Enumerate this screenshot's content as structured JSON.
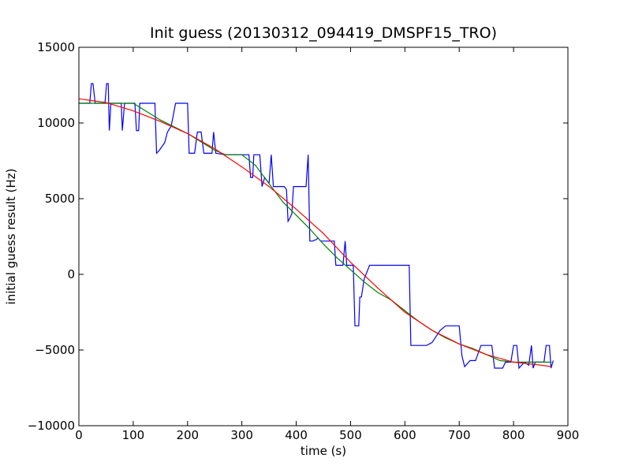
{
  "chart_data": {
    "type": "line",
    "title": "Init guess (20130312_094419_DMSPF15_TRO)",
    "xlabel": "time (s)",
    "ylabel": "initial guess result (Hz)",
    "xlim": [
      0,
      900
    ],
    "ylim": [
      -10000,
      15000
    ],
    "xticks": [
      0,
      100,
      200,
      300,
      400,
      500,
      600,
      700,
      800,
      900
    ],
    "xtick_labels": [
      "0",
      "100",
      "200",
      "300",
      "400",
      "500",
      "600",
      "700",
      "800",
      "900"
    ],
    "yticks": [
      -10000,
      -5000,
      0,
      5000,
      10000,
      15000
    ],
    "ytick_labels": [
      "−10000",
      "−5000",
      "0",
      "5000",
      "10000",
      "15000"
    ],
    "grid": false,
    "legend": "none",
    "series": [
      {
        "color": "#0000ff",
        "points": [
          [
            0,
            11300
          ],
          [
            20,
            11300
          ],
          [
            23,
            12600
          ],
          [
            26,
            12600
          ],
          [
            30,
            11300
          ],
          [
            48,
            11300
          ],
          [
            51,
            12600
          ],
          [
            54,
            12600
          ],
          [
            56,
            9500
          ],
          [
            59,
            11300
          ],
          [
            78,
            11300
          ],
          [
            80,
            9500
          ],
          [
            84,
            11300
          ],
          [
            100,
            11300
          ],
          [
            103,
            11300
          ],
          [
            106,
            9500
          ],
          [
            110,
            9500
          ],
          [
            112,
            11300
          ],
          [
            140,
            11300
          ],
          [
            143,
            8000
          ],
          [
            148,
            8200
          ],
          [
            158,
            8700
          ],
          [
            163,
            9400
          ],
          [
            170,
            9800
          ],
          [
            178,
            11300
          ],
          [
            200,
            11300
          ],
          [
            203,
            8000
          ],
          [
            213,
            8000
          ],
          [
            218,
            9400
          ],
          [
            225,
            9400
          ],
          [
            230,
            8000
          ],
          [
            245,
            8000
          ],
          [
            248,
            9400
          ],
          [
            252,
            8000
          ],
          [
            270,
            7900
          ],
          [
            300,
            7900
          ],
          [
            313,
            7900
          ],
          [
            316,
            6400
          ],
          [
            320,
            6400
          ],
          [
            322,
            7900
          ],
          [
            333,
            7900
          ],
          [
            337,
            5800
          ],
          [
            342,
            6400
          ],
          [
            350,
            6000
          ],
          [
            354,
            7900
          ],
          [
            358,
            5800
          ],
          [
            363,
            5800
          ],
          [
            368,
            5800
          ],
          [
            375,
            5800
          ],
          [
            378,
            5800
          ],
          [
            382,
            5600
          ],
          [
            385,
            3500
          ],
          [
            388,
            3700
          ],
          [
            392,
            4000
          ],
          [
            395,
            5800
          ],
          [
            400,
            5800
          ],
          [
            410,
            5800
          ],
          [
            418,
            5800
          ],
          [
            422,
            7900
          ],
          [
            425,
            2200
          ],
          [
            430,
            2200
          ],
          [
            437,
            2300
          ],
          [
            440,
            2400
          ],
          [
            445,
            2200
          ],
          [
            460,
            2200
          ],
          [
            470,
            2200
          ],
          [
            473,
            600
          ],
          [
            486,
            600
          ],
          [
            490,
            2200
          ],
          [
            493,
            600
          ],
          [
            500,
            600
          ],
          [
            505,
            600
          ],
          [
            508,
            -3400
          ],
          [
            515,
            -3400
          ],
          [
            517,
            -1500
          ],
          [
            520,
            -1500
          ],
          [
            525,
            -300
          ],
          [
            535,
            600
          ],
          [
            560,
            600
          ],
          [
            590,
            600
          ],
          [
            608,
            600
          ],
          [
            611,
            -4700
          ],
          [
            640,
            -4700
          ],
          [
            650,
            -4500
          ],
          [
            665,
            -3700
          ],
          [
            675,
            -3400
          ],
          [
            700,
            -3400
          ],
          [
            705,
            -5400
          ],
          [
            710,
            -6100
          ],
          [
            720,
            -5700
          ],
          [
            730,
            -5700
          ],
          [
            740,
            -4700
          ],
          [
            760,
            -4700
          ],
          [
            765,
            -6200
          ],
          [
            780,
            -6200
          ],
          [
            785,
            -5800
          ],
          [
            795,
            -5800
          ],
          [
            800,
            -4700
          ],
          [
            806,
            -4700
          ],
          [
            810,
            -6200
          ],
          [
            820,
            -5800
          ],
          [
            828,
            -6000
          ],
          [
            833,
            -4700
          ],
          [
            836,
            -6200
          ],
          [
            840,
            -5800
          ],
          [
            856,
            -5800
          ],
          [
            860,
            -4700
          ],
          [
            866,
            -4700
          ],
          [
            869,
            -6200
          ],
          [
            873,
            -5700
          ]
        ]
      },
      {
        "color": "#008000",
        "points": [
          [
            0,
            11300
          ],
          [
            100,
            11300
          ],
          [
            150,
            10200
          ],
          [
            200,
            9300
          ],
          [
            250,
            8200
          ],
          [
            270,
            7900
          ],
          [
            300,
            7900
          ],
          [
            325,
            7200
          ],
          [
            350,
            6000
          ],
          [
            375,
            4800
          ],
          [
            400,
            3900
          ],
          [
            425,
            3000
          ],
          [
            450,
            2000
          ],
          [
            475,
            1100
          ],
          [
            500,
            300
          ],
          [
            525,
            -500
          ],
          [
            550,
            -1200
          ],
          [
            575,
            -1700
          ],
          [
            600,
            -2400
          ],
          [
            625,
            -3100
          ],
          [
            650,
            -3700
          ],
          [
            675,
            -4200
          ],
          [
            700,
            -4600
          ],
          [
            725,
            -4900
          ],
          [
            750,
            -5300
          ],
          [
            775,
            -5700
          ],
          [
            800,
            -5800
          ],
          [
            830,
            -5800
          ],
          [
            870,
            -5800
          ]
        ]
      },
      {
        "color": "#ff0000",
        "points": [
          [
            0,
            11600
          ],
          [
            50,
            11350
          ],
          [
            100,
            10800
          ],
          [
            150,
            10100
          ],
          [
            200,
            9300
          ],
          [
            250,
            8300
          ],
          [
            300,
            7100
          ],
          [
            350,
            5800
          ],
          [
            400,
            4300
          ],
          [
            450,
            2700
          ],
          [
            500,
            800
          ],
          [
            550,
            -900
          ],
          [
            600,
            -2500
          ],
          [
            650,
            -3700
          ],
          [
            700,
            -4600
          ],
          [
            750,
            -5300
          ],
          [
            800,
            -5800
          ],
          [
            850,
            -6000
          ],
          [
            870,
            -6100
          ]
        ]
      }
    ]
  }
}
